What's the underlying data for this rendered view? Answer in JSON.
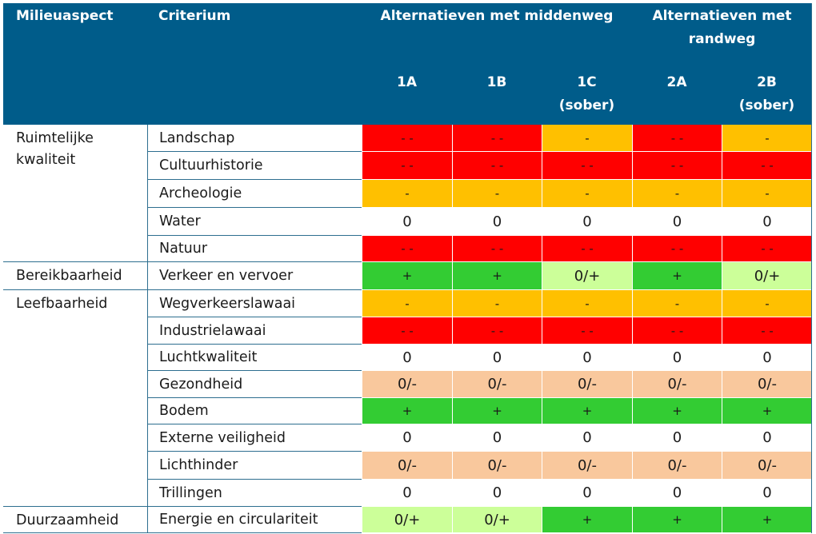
{
  "colors": {
    "header_bg": "#005C8A",
    "very_negative": "#FF0000",
    "negative": "#FFC000",
    "neutral": "#FFFFFF",
    "slightly_negative": "#F9C89D",
    "slightly_positive": "#CCFF99",
    "positive": "#33CC33",
    "grid_line": "#2D6E8F"
  },
  "header": {
    "milieuaspect": "Milieuaspect",
    "criterium": "Criterium",
    "group_middenweg": "Alternatieven met middenweg",
    "group_randweg_line1": "Alternatieven met",
    "group_randweg_line2": "randweg",
    "alternatives": [
      {
        "code": "1A",
        "sub": ""
      },
      {
        "code": "1B",
        "sub": ""
      },
      {
        "code": "1C",
        "sub": "(sober)"
      },
      {
        "code": "2A",
        "sub": ""
      },
      {
        "code": "2B",
        "sub": "(sober)"
      }
    ]
  },
  "aspects": [
    {
      "name_lines": [
        "Ruimtelijke",
        "kwaliteit"
      ],
      "from": 0,
      "to": 4
    },
    {
      "name_lines": [
        "Bereikbaarheid"
      ],
      "from": 5,
      "to": 5
    },
    {
      "name_lines": [
        "Leefbaarheid"
      ],
      "from": 6,
      "to": 13
    },
    {
      "name_lines": [
        "Duurzaamheid"
      ],
      "from": 14,
      "to": 14
    }
  ],
  "rows": [
    {
      "criterium": "Landschap",
      "scores": [
        "- -",
        "- -",
        "-",
        "- -",
        "-"
      ]
    },
    {
      "criterium": "Cultuurhistorie",
      "scores": [
        "- -",
        "- -",
        "- -",
        "- -",
        "- -"
      ]
    },
    {
      "criterium": "Archeologie",
      "scores": [
        "-",
        "-",
        "-",
        "-",
        "-"
      ]
    },
    {
      "criterium": "Water",
      "scores": [
        "0",
        "0",
        "0",
        "0",
        "0"
      ]
    },
    {
      "criterium": "Natuur",
      "scores": [
        "- -",
        "- -",
        "- -",
        "- -",
        "- -"
      ]
    },
    {
      "criterium": "Verkeer en vervoer",
      "scores": [
        "+",
        "+",
        "0/+",
        "+",
        "0/+"
      ]
    },
    {
      "criterium": "Wegverkeerslawaai",
      "scores": [
        "-",
        "-",
        "-",
        "-",
        "-"
      ]
    },
    {
      "criterium": "Industrielawaai",
      "scores": [
        "- -",
        "- -",
        "- -",
        "- -",
        "- -"
      ]
    },
    {
      "criterium": "Luchtkwaliteit",
      "scores": [
        "0",
        "0",
        "0",
        "0",
        "0"
      ]
    },
    {
      "criterium": "Gezondheid",
      "scores": [
        "0/-",
        "0/-",
        "0/-",
        "0/-",
        "0/-"
      ]
    },
    {
      "criterium": "Bodem",
      "scores": [
        "+",
        "+",
        "+",
        "+",
        "+"
      ]
    },
    {
      "criterium": "Externe veiligheid",
      "scores": [
        "0",
        "0",
        "0",
        "0",
        "0"
      ]
    },
    {
      "criterium": "Lichthinder",
      "scores": [
        "0/-",
        "0/-",
        "0/-",
        "0/-",
        "0/-"
      ]
    },
    {
      "criterium": "Trillingen",
      "scores": [
        "0",
        "0",
        "0",
        "0",
        "0"
      ]
    },
    {
      "criterium": "Energie en circulariteit",
      "scores": [
        "0/+",
        "0/+",
        "+",
        "+",
        "+"
      ]
    }
  ]
}
